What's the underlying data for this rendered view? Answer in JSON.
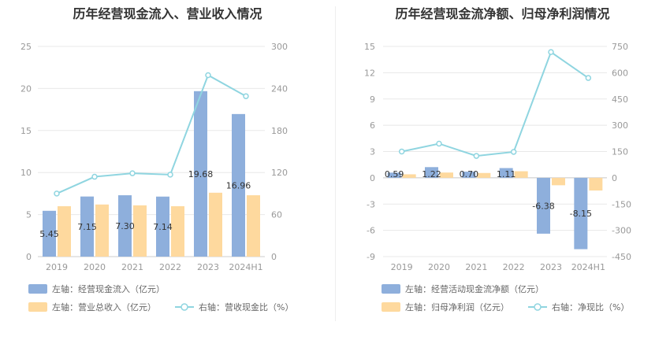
{
  "charts": [
    {
      "title": "历年经营现金流入、营业收入情况",
      "legend": [
        "左轴：经营现金流入（亿元）",
        "左轴：营业总收入（亿元）",
        "右轴：营收现金比（%）"
      ]
    },
    {
      "title": "历年经营现金流净额、归母净利润情况",
      "legend": [
        "左轴：经营活动现金流净额（亿元）",
        "左轴：归母净利润（亿元）",
        "右轴：净现比（%）"
      ]
    }
  ],
  "chart_data": [
    {
      "type": "bar",
      "title": "历年经营现金流入、营业收入情况",
      "categories": [
        "2019",
        "2020",
        "2021",
        "2022",
        "2023",
        "2024H1"
      ],
      "left_axis": {
        "range": [
          0,
          25
        ],
        "ticks": [
          "0",
          "5",
          "10",
          "15",
          "20",
          "25"
        ]
      },
      "right_axis": {
        "range": [
          0,
          300
        ],
        "ticks": [
          "0",
          "60",
          "120",
          "180",
          "240",
          "300"
        ]
      },
      "series": [
        {
          "name": "左轴：经营现金流入（亿元）",
          "axis": "left",
          "kind": "bar",
          "color": "#8eafdc",
          "values": [
            5.45,
            7.15,
            7.3,
            7.14,
            19.68,
            16.96
          ],
          "labels": [
            "5.45",
            "7.15",
            "7.30",
            "7.14",
            "19.68",
            "16.96"
          ]
        },
        {
          "name": "左轴：营业总收入（亿元）",
          "axis": "left",
          "kind": "bar",
          "color": "#fed99e",
          "values": [
            6.0,
            6.2,
            6.1,
            6.0,
            7.6,
            7.3
          ]
        },
        {
          "name": "右轴：营收现金比（%）",
          "axis": "right",
          "kind": "line",
          "color": "#8fd5e0",
          "values": [
            90,
            114,
            119,
            117,
            259,
            229
          ]
        }
      ],
      "grid": true,
      "legend_position": "bottom"
    },
    {
      "type": "bar",
      "title": "历年经营现金流净额、归母净利润情况",
      "categories": [
        "2019",
        "2020",
        "2021",
        "2022",
        "2023",
        "2024H1"
      ],
      "left_axis": {
        "range": [
          -9,
          15
        ],
        "ticks": [
          "-9",
          "-6",
          "-3",
          "0",
          "3",
          "6",
          "9",
          "12",
          "15"
        ]
      },
      "right_axis": {
        "range": [
          -450,
          750
        ],
        "ticks": [
          "-450",
          "-300",
          "-150",
          "0",
          "150",
          "300",
          "450",
          "600",
          "750"
        ]
      },
      "series": [
        {
          "name": "左轴：经营活动现金流净额（亿元）",
          "axis": "left",
          "kind": "bar",
          "color": "#8eafdc",
          "values": [
            0.59,
            1.22,
            0.7,
            1.11,
            -6.38,
            -8.15
          ],
          "labels": [
            "0.59",
            "1.22",
            "0.70",
            "1.11",
            "-6.38",
            "-8.15"
          ]
        },
        {
          "name": "左轴：归母净利润（亿元）",
          "axis": "left",
          "kind": "bar",
          "color": "#fed99e",
          "values": [
            0.4,
            0.6,
            0.55,
            0.75,
            -0.85,
            -1.45
          ]
        },
        {
          "name": "右轴：净现比（%）",
          "axis": "right",
          "kind": "line",
          "color": "#8fd5e0",
          "values": [
            150,
            195,
            125,
            148,
            718,
            570
          ]
        }
      ],
      "grid": true,
      "legend_position": "bottom"
    }
  ]
}
